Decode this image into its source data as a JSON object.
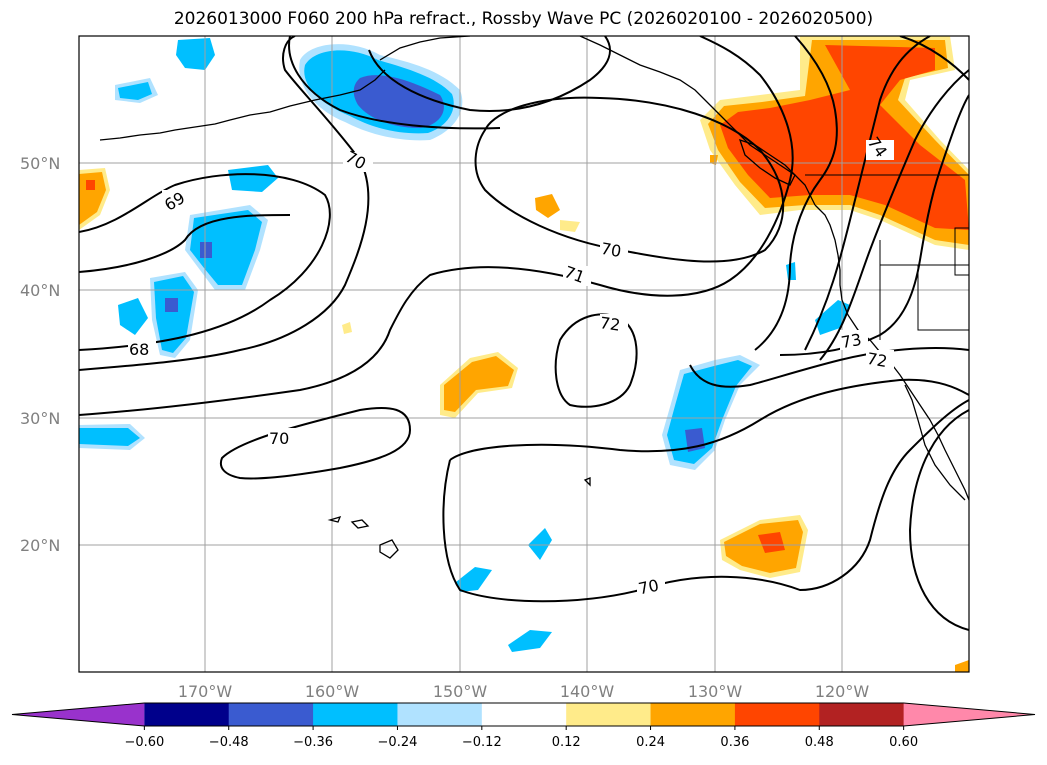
{
  "title": "2026013000 F060 200 hPa refract., Rossby Wave PC (2026020100 - 2026020500)",
  "lat_ticks": [
    "50°N",
    "40°N",
    "30°N",
    "20°N"
  ],
  "lon_ticks": [
    "170°W",
    "160°W",
    "150°W",
    "140°W",
    "130°W",
    "120°W"
  ],
  "contour_labels": [
    "70",
    "69",
    "68",
    "70",
    "71",
    "72",
    "70",
    "70",
    "73",
    "72",
    "74"
  ],
  "colorbar": {
    "colors": [
      "#9932cc",
      "#00008b",
      "#3a5bd0",
      "#00bfff",
      "#b0e2ff",
      "#ffffff",
      "#ffeb8a",
      "#ffa500",
      "#ff4500",
      "#b22222",
      "#ff88aa"
    ],
    "tick_labels": [
      "−0.60",
      "−0.48",
      "−0.36",
      "−0.24",
      "−0.12",
      "0.12",
      "0.24",
      "0.36",
      "0.48",
      "0.60"
    ]
  }
}
